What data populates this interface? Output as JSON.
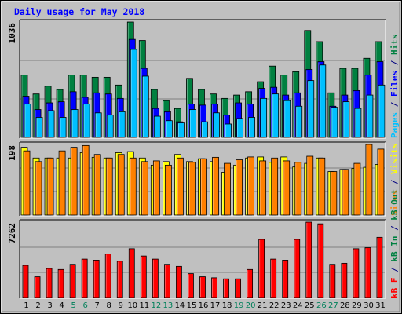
{
  "chart_data": {
    "type": "bar",
    "title": "Daily usage for May 2018",
    "days": [
      "1",
      "2",
      "3",
      "4",
      "5",
      "6",
      "7",
      "8",
      "9",
      "10",
      "11",
      "12",
      "13",
      "14",
      "15",
      "16",
      "17",
      "18",
      "19",
      "20",
      "21",
      "22",
      "23",
      "24",
      "25",
      "26",
      "27",
      "28",
      "29",
      "30",
      "31"
    ],
    "weekend_days": [
      "5",
      "6",
      "12",
      "13",
      "19",
      "20",
      "26",
      "27"
    ],
    "panels": [
      {
        "id": "hits",
        "max_label": "1036",
        "ymax": 1036,
        "series": [
          {
            "name": "Hits",
            "color": "#008040",
            "values": [
              560,
              390,
              460,
              430,
              560,
              560,
              540,
              540,
              470,
              1036,
              870,
              430,
              330,
              260,
              530,
              430,
              390,
              350,
              380,
              410,
              500,
              640,
              560,
              590,
              960,
              860,
              400,
              620,
              620,
              710,
              860
            ]
          },
          {
            "name": "Files",
            "color": "#0000ff",
            "values": [
              370,
              250,
              310,
              320,
              410,
              360,
              400,
              390,
              350,
              880,
              620,
              260,
              230,
              140,
              300,
              290,
              300,
              200,
              310,
              300,
              440,
              450,
              380,
              400,
              610,
              680,
              280,
              380,
              420,
              560,
              680
            ]
          },
          {
            "name": "Pages",
            "color": "#00c0ff",
            "values": [
              300,
              180,
              240,
              180,
              250,
              300,
              220,
              200,
              230,
              790,
              550,
              190,
              150,
              130,
              250,
              140,
              220,
              120,
              170,
              180,
              350,
              390,
              330,
              280,
              510,
              650,
              270,
              320,
              260,
              380,
              470
            ]
          }
        ],
        "legend": [
          {
            "text": "Pages",
            "color": "#00c0ff"
          },
          {
            "text": " / ",
            "color": "#000080"
          },
          {
            "text": "Files",
            "color": "#0000ff"
          },
          {
            "text": " / ",
            "color": "#000080"
          },
          {
            "text": "Hits",
            "color": "#008040"
          }
        ]
      },
      {
        "id": "visits",
        "max_label": "198",
        "ymax": 198,
        "series": [
          {
            "name": "Visits",
            "color": "#ffff00",
            "values": [
              190,
              160,
              160,
              160,
              160,
              175,
              162,
              160,
              175,
              178,
              160,
              140,
              150,
              170,
              150,
              158,
              150,
              120,
              140,
              160,
              163,
              148,
              163,
              135,
              145,
              160,
              122,
              128,
              131,
              134,
              142
            ]
          },
          {
            "name": "Sites",
            "color": "#ff8000",
            "values": [
              180,
              150,
              160,
              180,
              190,
              195,
              170,
              160,
              170,
              160,
              150,
              152,
              140,
              160,
              148,
              158,
              162,
              145,
              155,
              163,
              152,
              160,
              152,
              148,
              165,
              160,
              122,
              128,
              145,
              198,
              185
            ]
          }
        ],
        "legend": [
          {
            "text": "Sites",
            "color": "#ff8000"
          },
          {
            "text": " / ",
            "color": "#000080"
          },
          {
            "text": "Visits",
            "color": "#ffff00"
          }
        ]
      },
      {
        "id": "kbytes",
        "max_label": "7262",
        "ymax": 7262,
        "series": [
          {
            "name": "kB F",
            "color": "#ff0000",
            "values": [
              3100,
              2000,
              2800,
              2700,
              3200,
              3700,
              3600,
              4200,
              3500,
              4700,
              4000,
              3700,
              3200,
              3000,
              2300,
              2000,
              1900,
              1800,
              1800,
              2700,
              5600,
              3700,
              3600,
              5600,
              7262,
              7100,
              3200,
              3300,
              4700,
              4800,
              5800
            ]
          }
        ],
        "legend": [
          {
            "text": "kB F",
            "color": "#ff0000"
          },
          {
            "text": " / ",
            "color": "#000080"
          },
          {
            "text": "kB In",
            "color": "#008040"
          },
          {
            "text": " / ",
            "color": "#000080"
          },
          {
            "text": "kB Out",
            "color": "#008040"
          }
        ]
      }
    ]
  }
}
